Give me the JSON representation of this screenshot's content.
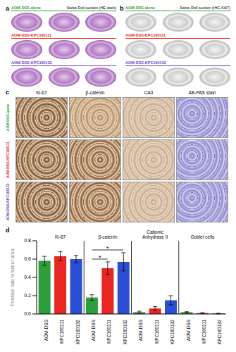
{
  "panels": [
    {
      "label": "a",
      "caption": "Swiss Roll section (HE stain)",
      "groups": [
        "AOM-DSS alone",
        "AOM-DSS-KPC160111",
        "AOM-DSS-KPC160132"
      ]
    },
    {
      "label": "b",
      "caption": "Swiss Roll section (IHC-Ki67)",
      "groups": [
        "AOM-DSS alone",
        "AOM-DSS-KPC160111",
        "AOM-DSS-KPC160132"
      ]
    },
    {
      "label": "c",
      "columns": [
        "Ki-67",
        "β-catenin",
        "CAII",
        "AB-PAS stain"
      ],
      "rows": [
        "AOM-DSS-alone",
        "AOM-DSS-KPC160111",
        "AOM-DSS-KPC160132"
      ]
    }
  ],
  "chart_data": {
    "label": "d",
    "type": "bar",
    "categories": [
      "Ki-67",
      "β-catenin",
      "Cabonic Anhydrase II",
      "Goblet cells"
    ],
    "y_label": "Positive rate in tumor area",
    "ylim": [
      0,
      0.8
    ],
    "yticks": [
      {
        "value": 0,
        "label": "0.0"
      },
      0.2,
      0.4,
      0.6,
      0.8
    ],
    "series": [
      {
        "name": "AOM-DSS",
        "color": "#2e9e3a",
        "values": [
          0.58,
          0.18,
          0.02,
          0.02
        ],
        "errors": [
          0.05,
          0.03,
          0.01,
          0.005
        ]
      },
      {
        "name": "KPC160111",
        "color": "#e8261f",
        "values": [
          0.63,
          0.5,
          0.06,
          0.01
        ],
        "errors": [
          0.05,
          0.07,
          0.02,
          0.005
        ]
      },
      {
        "name": "KPC160132",
        "color": "#2a4fd6",
        "values": [
          0.6,
          0.57,
          0.15,
          0.005
        ],
        "errors": [
          0.04,
          0.1,
          0.05,
          0.003
        ]
      }
    ],
    "annotations": [
      {
        "text": "*",
        "category": "β-catenin",
        "between": [
          "AOM-DSS",
          "KPC160111"
        ]
      },
      {
        "text": "*",
        "category": "β-catenin",
        "between": [
          "AOM-DSS",
          "KPC160132"
        ]
      }
    ]
  }
}
